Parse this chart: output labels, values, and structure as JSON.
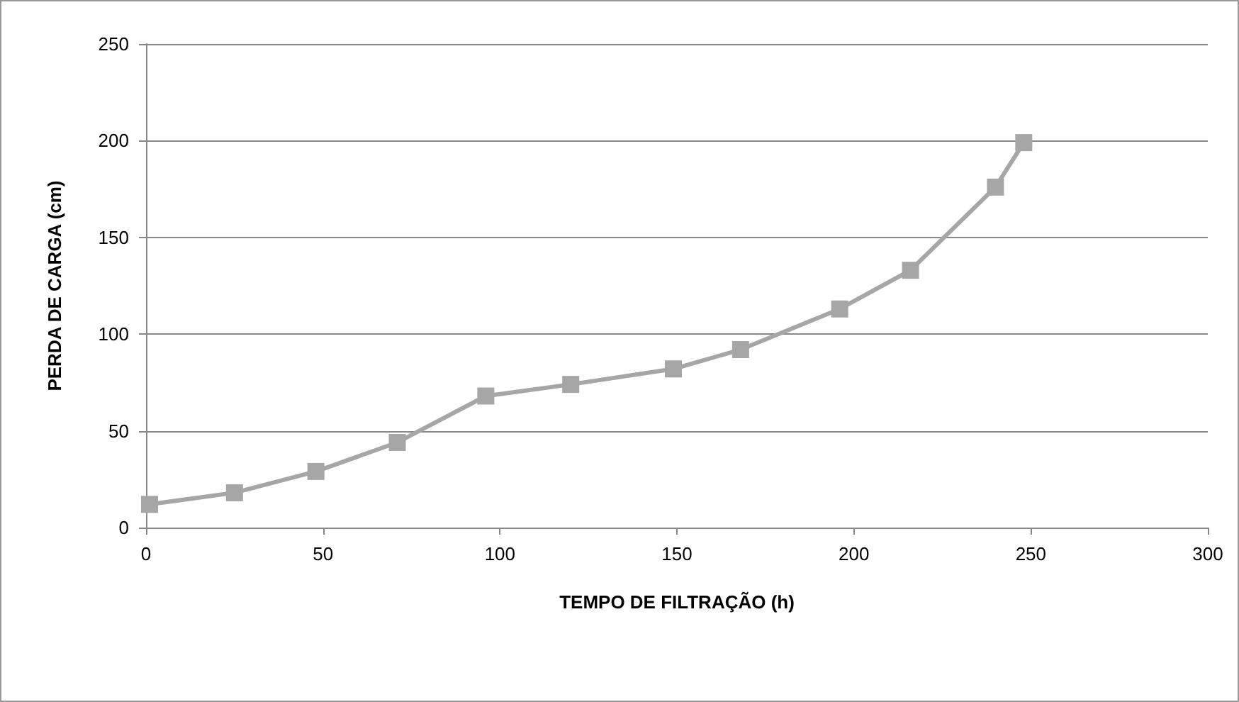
{
  "chart_data": {
    "type": "line",
    "xlabel": "TEMPO DE FILTRAÇÃO (h)",
    "ylabel": "PERDA DE CARGA (cm)",
    "x": [
      1,
      25,
      48,
      71,
      96,
      120,
      149,
      168,
      196,
      216,
      240,
      248
    ],
    "series": [
      {
        "color": "#a6a6a6",
        "values": [
          12,
          18,
          29,
          44,
          68,
          74,
          82,
          92,
          113,
          133,
          176,
          199
        ]
      }
    ],
    "xlim": [
      0,
      300
    ],
    "xticks": [
      0,
      50,
      100,
      150,
      200,
      250,
      300
    ],
    "ylim": [
      0,
      250
    ],
    "yticks": [
      0,
      50,
      100,
      150,
      200,
      250
    ],
    "grid": "y",
    "marker": "square",
    "line_style": "solid"
  }
}
